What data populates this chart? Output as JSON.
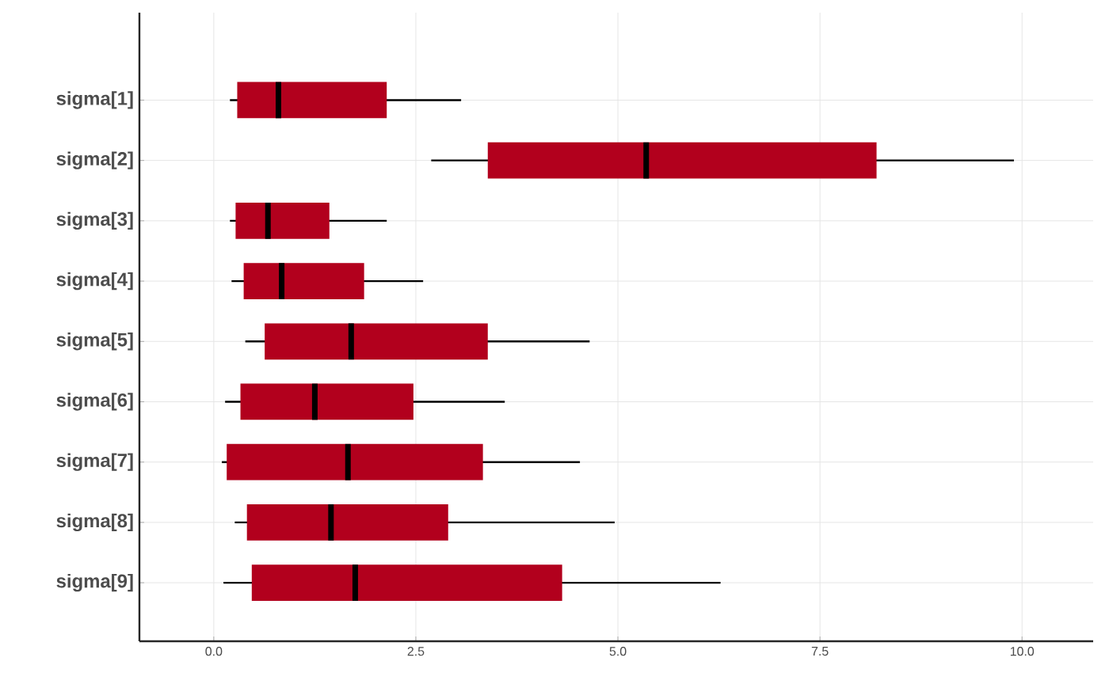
{
  "chart_data": {
    "type": "box",
    "orientation": "horizontal",
    "color": "#b2001d",
    "categories": [
      "sigma[1]",
      "sigma[2]",
      "sigma[3]",
      "sigma[4]",
      "sigma[5]",
      "sigma[6]",
      "sigma[7]",
      "sigma[8]",
      "sigma[9]"
    ],
    "boxes": [
      {
        "low": 0.2,
        "q1": 0.29,
        "median": 0.8,
        "q3": 2.14,
        "high": 3.06
      },
      {
        "low": 2.69,
        "q1": 3.39,
        "median": 5.35,
        "q3": 8.2,
        "high": 9.9
      },
      {
        "low": 0.2,
        "q1": 0.27,
        "median": 0.67,
        "q3": 1.43,
        "high": 2.14
      },
      {
        "low": 0.22,
        "q1": 0.37,
        "median": 0.84,
        "q3": 1.86,
        "high": 2.59
      },
      {
        "low": 0.39,
        "q1": 0.63,
        "median": 1.7,
        "q3": 3.39,
        "high": 4.65
      },
      {
        "low": 0.14,
        "q1": 0.33,
        "median": 1.25,
        "q3": 2.47,
        "high": 3.6
      },
      {
        "low": 0.1,
        "q1": 0.16,
        "median": 1.66,
        "q3": 3.33,
        "high": 4.53
      },
      {
        "low": 0.26,
        "q1": 0.41,
        "median": 1.45,
        "q3": 2.9,
        "high": 4.96
      },
      {
        "low": 0.12,
        "q1": 0.47,
        "median": 1.75,
        "q3": 4.31,
        "high": 6.27
      }
    ],
    "xlim": [
      -0.92,
      10.88
    ],
    "xticks": [
      {
        "value": 0,
        "label": "0.0"
      },
      {
        "value": 2.5,
        "label": "2.5"
      },
      {
        "value": 5,
        "label": "5.0"
      },
      {
        "value": 7.5,
        "label": "7.5"
      },
      {
        "value": 10,
        "label": "10.0"
      }
    ],
    "grid": true
  }
}
